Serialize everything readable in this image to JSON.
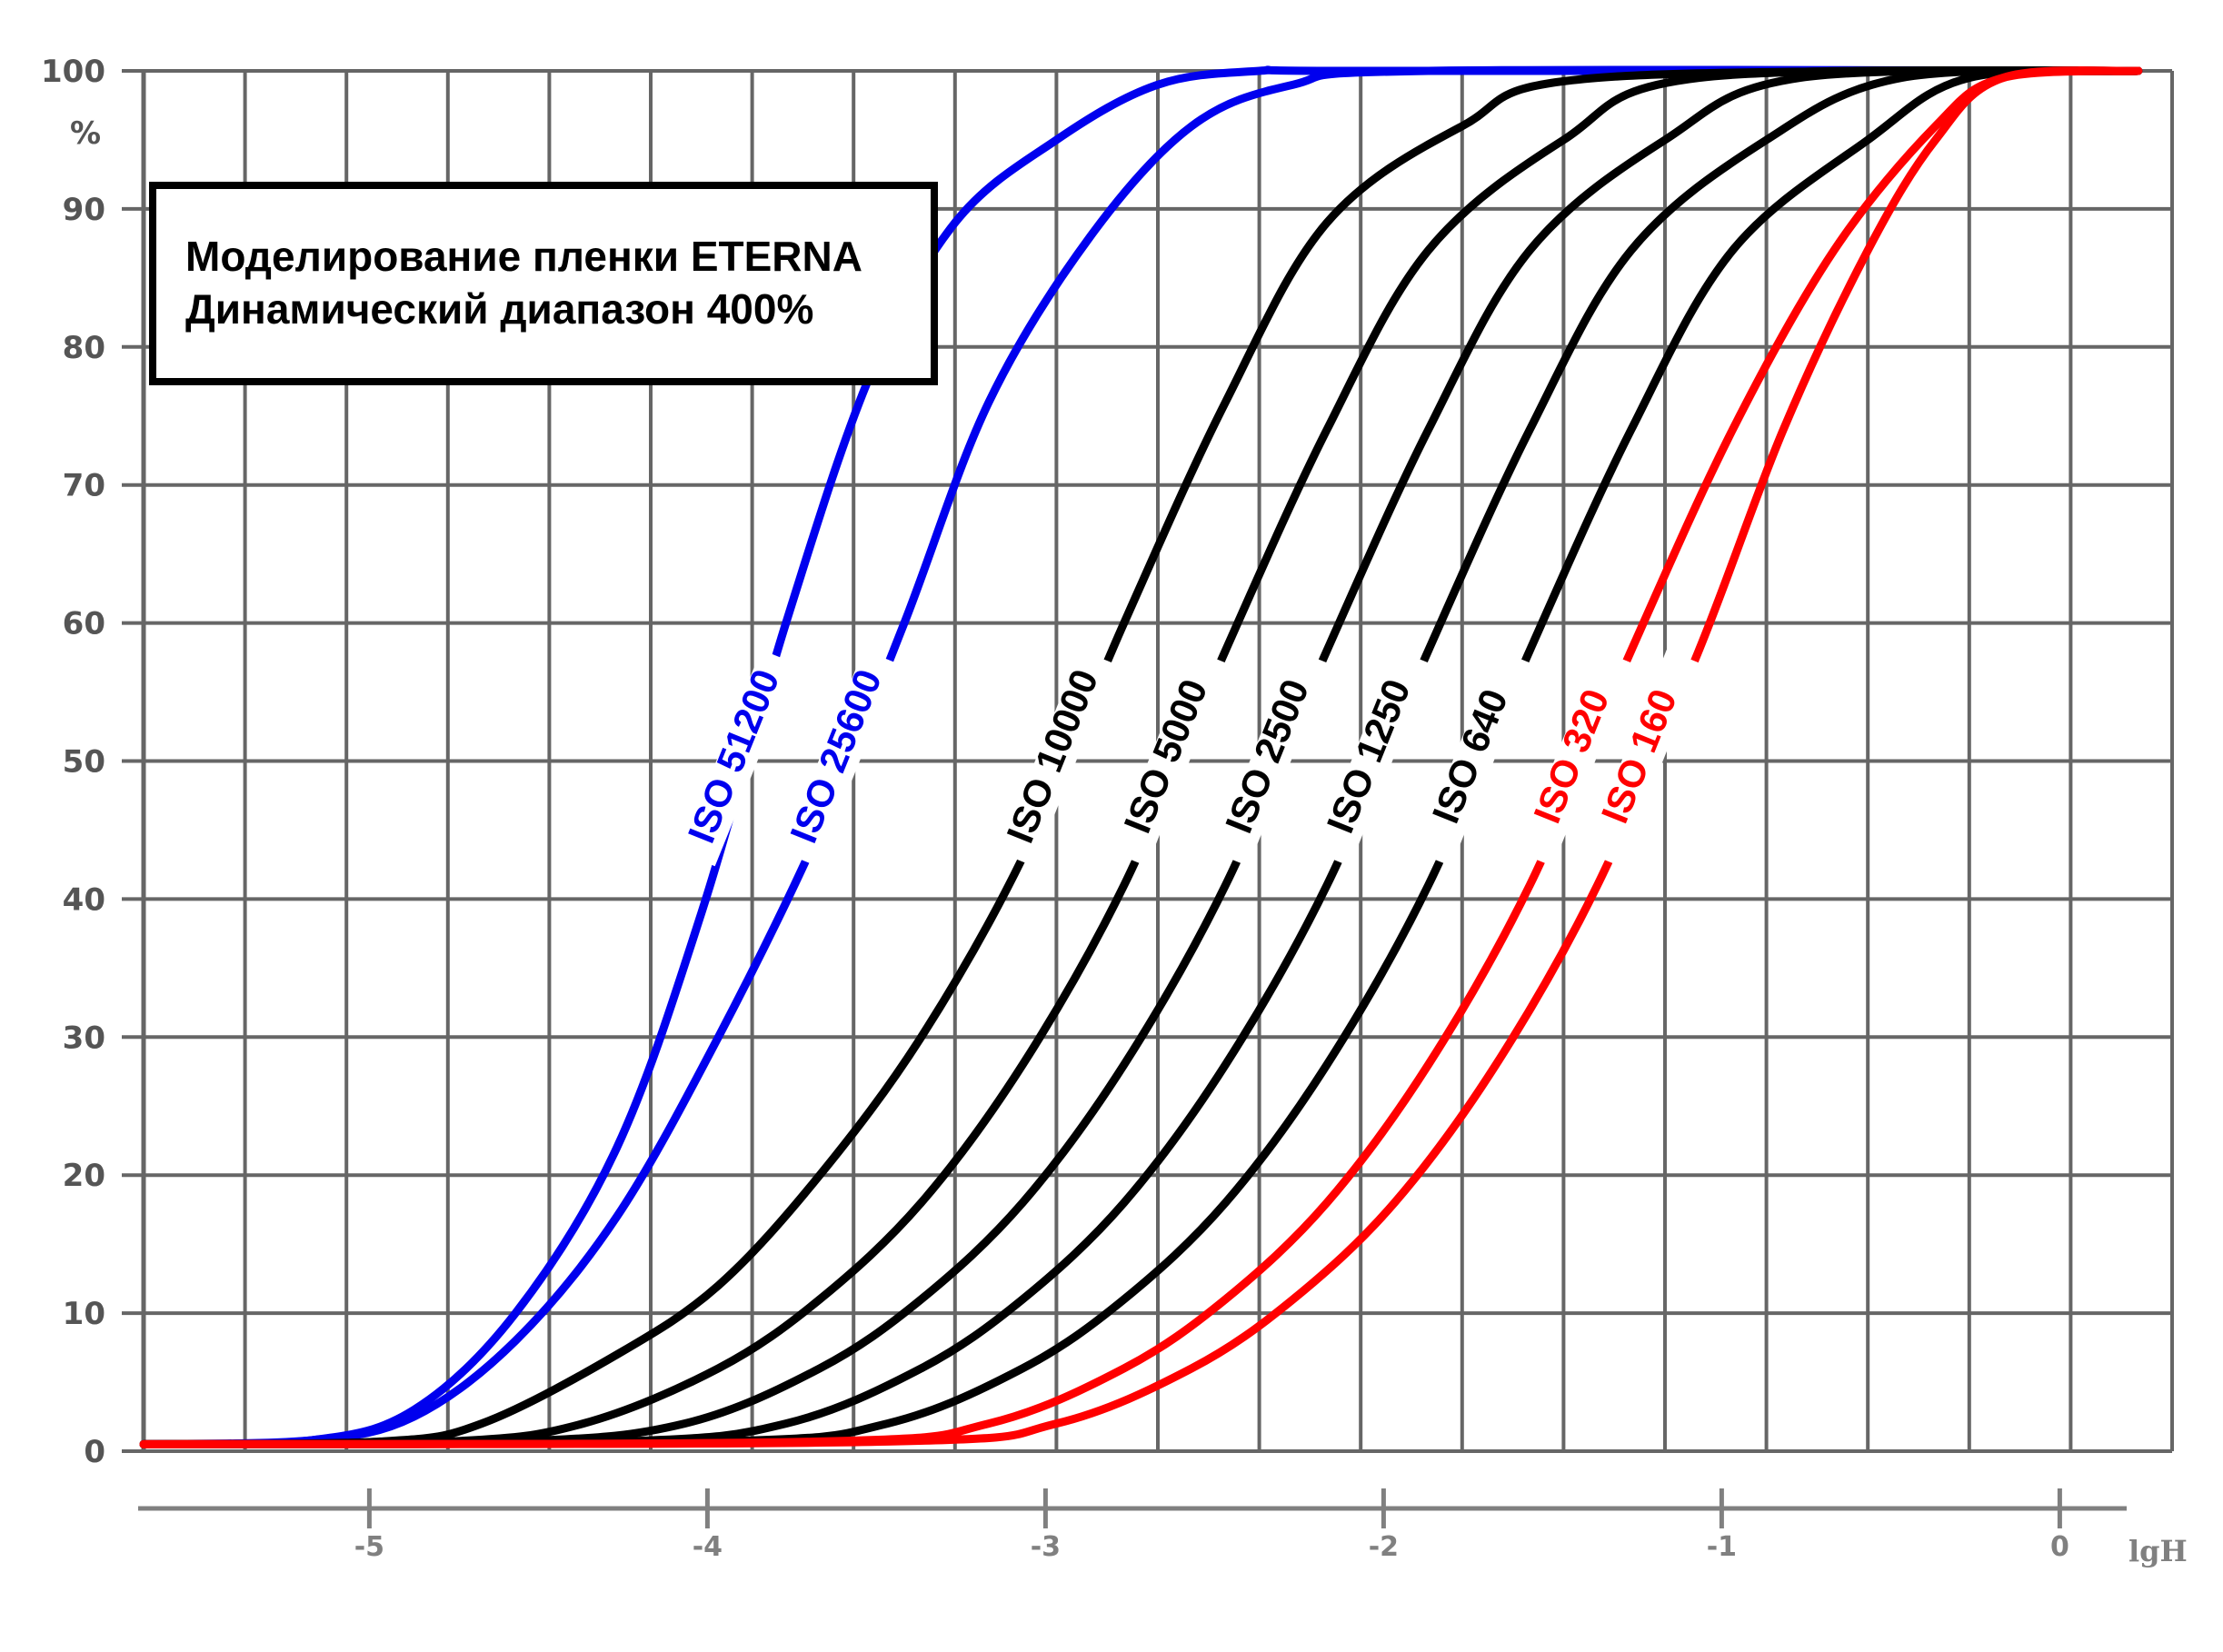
{
  "chart_data": {
    "type": "line",
    "title": [
      "Моделирование пленки ETERNA",
      "Динамический диапазон 400%"
    ],
    "ylabel": "%",
    "xlabel": "lgH",
    "ylim": [
      0,
      100
    ],
    "xlim": [
      -5.7,
      0.3
    ],
    "yticks": [
      0,
      10,
      20,
      30,
      40,
      50,
      60,
      70,
      80,
      90,
      100
    ],
    "yticklabels": [
      "0",
      "10",
      "20",
      "30",
      "40",
      "50",
      "60",
      "70",
      "80",
      "90",
      "100"
    ],
    "xticks": [
      -5,
      -4,
      -3,
      -2,
      -1,
      0
    ],
    "xticklabels": [
      "-5",
      "-4",
      "-3",
      "-2",
      "-1",
      "0"
    ],
    "grid": true,
    "series": [
      {
        "name": "ISO 51200",
        "color": "#0000ee",
        "x": [
          -5.7,
          -5.2,
          -4.9,
          -4.6,
          -4.3,
          -4.05,
          -3.8,
          -3.55,
          -3.3,
          -3.0,
          -2.7,
          -2.4,
          -2.1,
          0.2
        ],
        "values": [
          0.5,
          0.8,
          3,
          10,
          22,
          39,
          60,
          78,
          89,
          95,
          99,
          100,
          100,
          100
        ]
      },
      {
        "name": "ISO 25600",
        "color": "#0000ee",
        "x": [
          -5.7,
          -5.2,
          -4.9,
          -4.6,
          -4.3,
          -4.0,
          -3.7,
          -3.45,
          -3.2,
          -2.9,
          -2.6,
          -2.3,
          -1.9,
          0.2
        ],
        "values": [
          0.5,
          0.8,
          2.5,
          8,
          17,
          30,
          45,
          60,
          76,
          88,
          96,
          99,
          100,
          100
        ]
      },
      {
        "name": "ISO 10000",
        "color": "#000000",
        "x": [
          -5.7,
          -5.0,
          -4.7,
          -4.3,
          -4.0,
          -3.7,
          -3.4,
          -3.1,
          -2.8,
          -2.5,
          -2.2,
          -1.8,
          -1.4,
          0.2
        ],
        "values": [
          0.5,
          0.7,
          2,
          7,
          12,
          20,
          30,
          43,
          60,
          76,
          89,
          96,
          99.5,
          100
        ]
      },
      {
        "name": "ISO 5000",
        "color": "#000000",
        "x": [
          -5.7,
          -4.8,
          -4.4,
          -4.0,
          -3.7,
          -3.4,
          -3.1,
          -2.8,
          -2.5,
          -2.2,
          -1.9,
          -1.5,
          -1.1,
          0.2
        ],
        "values": [
          0.5,
          0.7,
          2,
          6,
          11,
          18,
          28,
          41,
          58,
          74,
          87,
          95,
          99.5,
          100
        ]
      },
      {
        "name": "ISO 2500",
        "color": "#000000",
        "x": [
          -5.7,
          -4.6,
          -4.1,
          -3.7,
          -3.4,
          -3.1,
          -2.8,
          -2.5,
          -2.2,
          -1.9,
          -1.6,
          -1.2,
          -0.8,
          0.2
        ],
        "values": [
          0.5,
          0.7,
          2,
          6,
          11,
          18,
          28,
          41,
          58,
          74,
          87,
          95,
          99.5,
          100
        ]
      },
      {
        "name": "ISO 1250",
        "color": "#000000",
        "x": [
          -5.7,
          -4.3,
          -3.8,
          -3.4,
          -3.1,
          -2.8,
          -2.5,
          -2.2,
          -1.9,
          -1.6,
          -1.3,
          -0.9,
          -0.5,
          0.2
        ],
        "values": [
          0.5,
          0.7,
          2,
          6,
          11,
          18,
          28,
          41,
          58,
          74,
          87,
          95,
          99.5,
          100
        ]
      },
      {
        "name": "ISO 640",
        "color": "#000000",
        "x": [
          -5.7,
          -4.0,
          -3.5,
          -3.1,
          -2.8,
          -2.5,
          -2.2,
          -1.9,
          -1.6,
          -1.3,
          -1.0,
          -0.6,
          -0.3,
          0.2
        ],
        "values": [
          0.5,
          0.7,
          2,
          6,
          11,
          18,
          28,
          41,
          58,
          74,
          87,
          95,
          99.5,
          100
        ]
      },
      {
        "name": "ISO 320",
        "color": "#ff0000",
        "x": [
          -5.7,
          -3.7,
          -3.2,
          -2.8,
          -2.5,
          -2.2,
          -1.9,
          -1.6,
          -1.3,
          -1.0,
          -0.7,
          -0.4,
          -0.2,
          0.2
        ],
        "values": [
          0.5,
          0.7,
          2,
          6,
          11,
          18,
          28,
          41,
          58,
          74,
          87,
          96,
          99.5,
          100
        ]
      },
      {
        "name": "ISO 160",
        "color": "#ff0000",
        "x": [
          -5.7,
          -3.5,
          -3.0,
          -2.6,
          -2.3,
          -2.0,
          -1.7,
          -1.4,
          -1.1,
          -0.85,
          -0.6,
          -0.4,
          -0.2,
          0.2
        ],
        "values": [
          0.5,
          0.7,
          2,
          6,
          11,
          18,
          28,
          41,
          58,
          74,
          87,
          95,
          99.5,
          100
        ]
      }
    ]
  }
}
